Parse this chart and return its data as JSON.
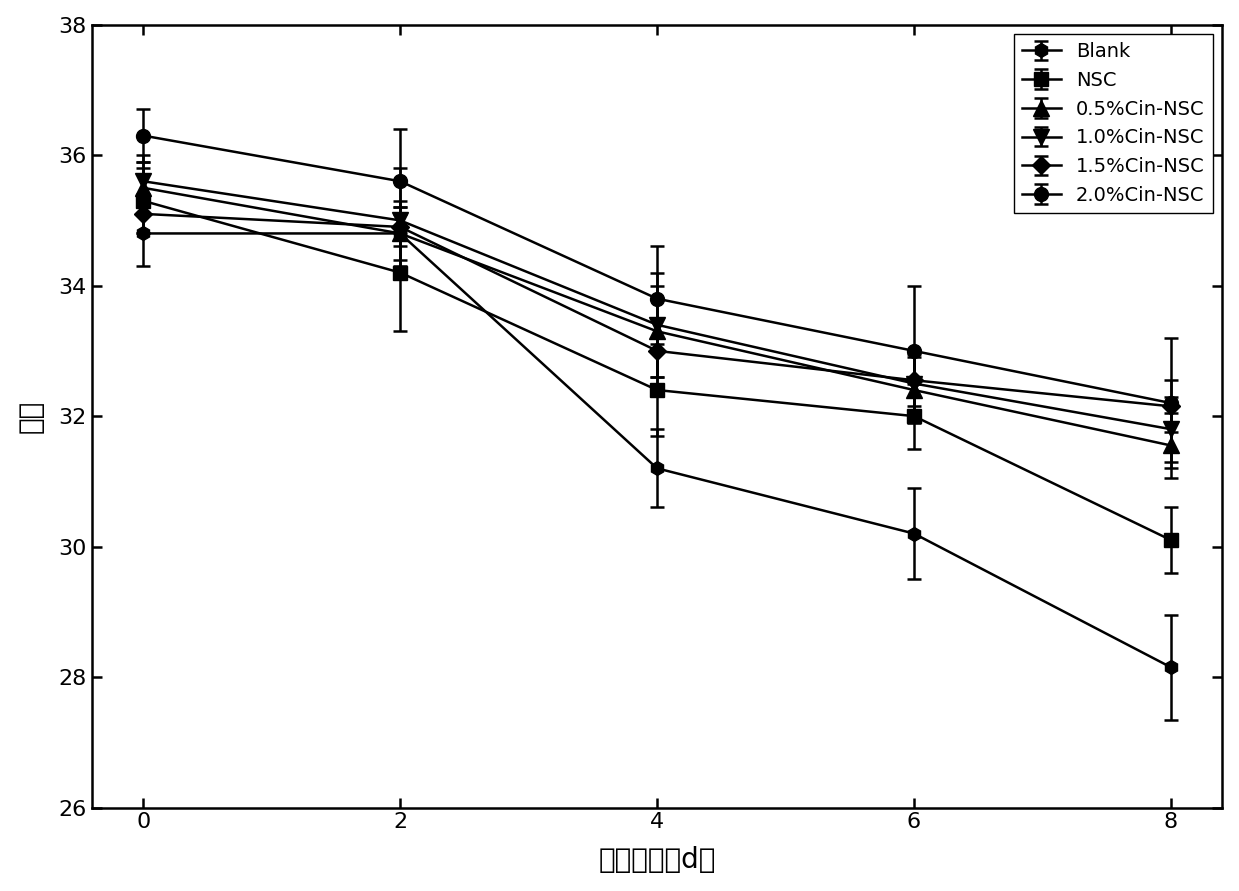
{
  "x": [
    0,
    2,
    4,
    6,
    8
  ],
  "series": [
    {
      "label": "Blank",
      "y": [
        34.8,
        34.8,
        31.2,
        30.2,
        28.15
      ],
      "yerr": [
        0.5,
        0.5,
        0.6,
        0.7,
        0.8
      ],
      "marker": "h",
      "markersize": 10
    },
    {
      "label": "NSC",
      "y": [
        35.3,
        34.2,
        32.4,
        32.0,
        30.1
      ],
      "yerr": [
        0.5,
        0.9,
        0.7,
        0.5,
        0.5
      ],
      "marker": "s",
      "markersize": 10
    },
    {
      "label": "0.5%Cin-NSC",
      "y": [
        35.5,
        34.8,
        33.3,
        32.4,
        31.55
      ],
      "yerr": [
        0.4,
        0.4,
        0.7,
        0.5,
        0.5
      ],
      "marker": "^",
      "markersize": 11
    },
    {
      "label": "1.0%Cin-NSC",
      "y": [
        35.6,
        35.0,
        33.4,
        32.5,
        31.8
      ],
      "yerr": [
        0.4,
        0.8,
        0.8,
        0.5,
        0.5
      ],
      "marker": "v",
      "markersize": 11
    },
    {
      "label": "1.5%Cin-NSC",
      "y": [
        35.1,
        34.9,
        33.0,
        32.55,
        32.15
      ],
      "yerr": [
        0.3,
        0.3,
        0.5,
        0.4,
        0.4
      ],
      "marker": "D",
      "markersize": 9
    },
    {
      "label": "2.0%Cin-NSC",
      "y": [
        36.3,
        35.6,
        33.8,
        33.0,
        32.2
      ],
      "yerr": [
        0.4,
        0.8,
        0.8,
        1.0,
        1.0
      ],
      "marker": "o",
      "markersize": 10
    }
  ],
  "xlabel": "保鲜时间（d）",
  "ylabel": "亮度",
  "xlim": [
    -0.4,
    8.4
  ],
  "ylim": [
    26,
    38
  ],
  "yticks": [
    26,
    28,
    30,
    32,
    34,
    36,
    38
  ],
  "xticks": [
    0,
    2,
    4,
    6,
    8
  ],
  "line_color": "#000000",
  "background_color": "#ffffff",
  "legend_loc": "upper right"
}
